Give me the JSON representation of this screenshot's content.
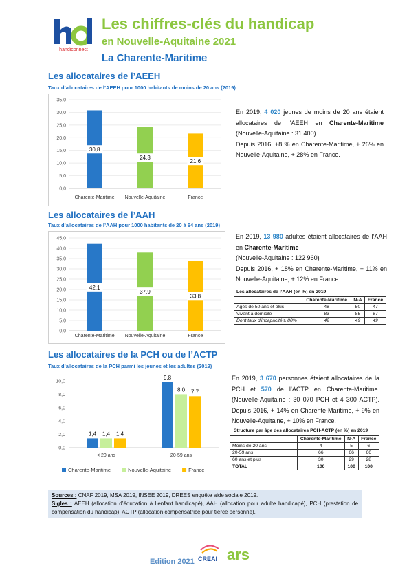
{
  "header": {
    "title": "Les chiffres-clés du handicap",
    "subtitle": "en Nouvelle-Aquitaine 2021",
    "region": "La Charente-Maritime",
    "logo_text": "handiconnect"
  },
  "sections": [
    {
      "heading": "Les allocataires de l’AEEH",
      "text": [
        "En 2019, ",
        "4 020",
        " jeunes de moins de 20 ans étaient allocataires de l’AEEH en ",
        "Charente-Maritime",
        " (Nouvelle-Aquitaine : 31 400).",
        "Depuis 2016, +8 % en Charente-Maritime, + 26% en Nouvelle-Aquitaine, + 28% en France."
      ]
    },
    {
      "heading": "Les allocataires de l’AAH",
      "text": [
        "En 2019, ",
        "13 980",
        " adultes étaient allocataires de l’AAH en ",
        "Charente-Maritime",
        " (Nouvelle-Aquitaine : 122 960)",
        "Depuis 2016, + 18% en Charente-Maritime, + 11% en Nouvelle-Aquitaine, + 12% en France."
      ],
      "table": {
        "title": "Les allocataires de l’AAH (en %) en 2019",
        "header": [
          "Charente-Maritime",
          "N-A",
          "France"
        ],
        "rows": [
          [
            "Agés de 50 ans et plus",
            48,
            50,
            47
          ],
          [
            "Vivant à domicile",
            83,
            85,
            87
          ],
          [
            "Dont taux d'incapacité ≥ 80%",
            42,
            49,
            49
          ]
        ]
      }
    },
    {
      "heading": "Les allocataires de la PCH ou de l’ACTP",
      "text": [
        "En 2019, ",
        "3 670",
        " personnes étaient allocataires de la PCH et ",
        "570",
        " de l’ACTP en Charente-Maritime. (Nouvelle-Aquitaine : 30 070 PCH et 4 300 ACTP). Depuis 2016, + 14% en Charente-Maritime, + 9% en Nouvelle-Aquitaine, + 10% en France."
      ],
      "table": {
        "title": "Structure par âge des allocataires PCH-ACTP (en %) en 2019",
        "header": [
          "Charente-Maritime",
          "N-A",
          "France"
        ],
        "rows": [
          [
            "Moins de 20 ans",
            4,
            5,
            6
          ],
          [
            "20-59 ans",
            66,
            66,
            66
          ],
          [
            "60 ans et plus",
            30,
            29,
            28
          ],
          [
            "TOTAL",
            100,
            100,
            100
          ]
        ]
      }
    }
  ],
  "sources": {
    "label": "Sources :",
    "text": "CNAF 2019, MSA 2019, INSEE 2019, DREES enquête aide sociale 2019.",
    "sigles_label": "Sigles :",
    "sigles": "AEEH (allocation d’éducation à l’enfant handicapé), AAH (allocation pour adulte handicapé), PCH (prestation de compensation du handicap), ACTP (allocation compensatrice pour tierce personne)."
  },
  "footer": {
    "edition": "Edition 2021",
    "logo_creai": "CREAI",
    "logo_ars": "ars"
  },
  "chart_data": [
    {
      "type": "bar",
      "title": "Taux d’allocataires de l’AEEH pour 1000 habitants de moins de 20 ans (2019)",
      "categories": [
        "Charente-Maritime",
        "Nouvelle-Aquitaine",
        "France"
      ],
      "values": [
        30.8,
        24.3,
        21.6
      ],
      "value_labels": [
        "30,8",
        "24,3",
        "21,6"
      ],
      "colors": [
        "#2878c8",
        "#92d050",
        "#ffc000"
      ],
      "ylim": [
        0,
        35
      ],
      "yticks": [
        {
          "value": 0,
          "label": "0,0"
        },
        {
          "value": 5,
          "label": "5,0"
        },
        {
          "value": 10,
          "label": "10,0"
        },
        {
          "value": 15,
          "label": "15,0"
        },
        {
          "value": 20,
          "label": "20,0"
        },
        {
          "value": 25,
          "label": "25,0"
        },
        {
          "value": 30,
          "label": "30,0"
        },
        {
          "value": 35,
          "label": "35,0"
        }
      ],
      "grid": true
    },
    {
      "type": "bar",
      "title": "Taux d’allocataires de l’AAH pour 1000 habitants de 20 à 64 ans (2019)",
      "categories": [
        "Charente-Maritime",
        "Nouvelle-Aquitaine",
        "France"
      ],
      "values": [
        42.1,
        37.9,
        33.8
      ],
      "value_labels": [
        "42,1",
        "37,9",
        "33,8"
      ],
      "colors": [
        "#2878c8",
        "#92d050",
        "#ffc000"
      ],
      "ylim": [
        0,
        45
      ],
      "yticks": [
        {
          "value": 0,
          "label": "0,0"
        },
        {
          "value": 5,
          "label": "5,0"
        },
        {
          "value": 10,
          "label": "10,0"
        },
        {
          "value": 15,
          "label": "15,0"
        },
        {
          "value": 20,
          "label": "20,0"
        },
        {
          "value": 25,
          "label": "25,0"
        },
        {
          "value": 30,
          "label": "30,0"
        },
        {
          "value": 35,
          "label": "35,0"
        },
        {
          "value": 40,
          "label": "40,0"
        },
        {
          "value": 45,
          "label": "45,0"
        }
      ],
      "grid": true
    },
    {
      "type": "bar",
      "title": "Taux d’allocataires de la PCH parmi les jeunes et les adultes (2019)",
      "categories": [
        "< 20 ans",
        "20-59 ans"
      ],
      "series": [
        {
          "name": "Charente-Maritime",
          "color": "#2878c8",
          "values": [
            1.4,
            9.8
          ],
          "value_labels": [
            "1,4",
            "9,8"
          ]
        },
        {
          "name": "Nouvelle-Aquitaine",
          "color": "#c6ef9a",
          "values": [
            1.4,
            8.0
          ],
          "value_labels": [
            "1,4",
            "8,0"
          ]
        },
        {
          "name": "France",
          "color": "#ffc000",
          "values": [
            1.4,
            7.7
          ],
          "value_labels": [
            "1,4",
            "7,7"
          ]
        }
      ],
      "ylim": [
        0,
        10
      ],
      "yticks": [
        {
          "value": 0,
          "label": "0,0"
        },
        {
          "value": 2,
          "label": "2,0"
        },
        {
          "value": 4,
          "label": "4,0"
        },
        {
          "value": 6,
          "label": "6,0"
        },
        {
          "value": 8,
          "label": "8,0"
        },
        {
          "value": 10,
          "label": "10,0"
        }
      ],
      "grid": false,
      "legend": "bottom"
    }
  ]
}
